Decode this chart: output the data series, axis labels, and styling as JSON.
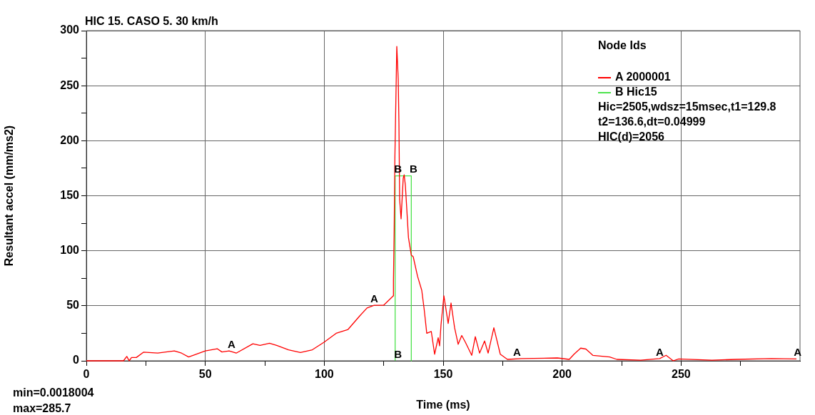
{
  "chart_data": {
    "type": "line",
    "title": "HIC 15. CASO 5. 30 km/h",
    "xlabel": "Time (ms)",
    "ylabel": "Resultant accel (mm/ms2)",
    "legend_title": "Node Ids",
    "xlim": [
      0,
      300
    ],
    "ylim": [
      0,
      300
    ],
    "xticks": [
      0,
      {
        "value": 25,
        "label": null
      },
      50,
      {
        "value": 75,
        "label": null
      },
      100,
      {
        "value": 125,
        "label": null
      },
      150,
      {
        "value": 175,
        "label": null
      },
      200,
      {
        "value": 225,
        "label": null
      },
      250,
      {
        "value": 275,
        "label": null
      }
    ],
    "yticks": [
      0,
      {
        "value": 25,
        "label": null
      },
      50,
      {
        "value": 75,
        "label": null
      },
      100,
      {
        "value": 125,
        "label": null
      },
      150,
      {
        "value": 175,
        "label": null
      },
      200,
      {
        "value": 225,
        "label": null
      },
      250,
      {
        "value": 275,
        "label": null
      },
      300
    ],
    "grid": true,
    "legend": "top right",
    "marker": "none",
    "line_style": "solid",
    "series": [
      {
        "name": "A 2000001",
        "color": "#ff0000",
        "x": [
          0,
          15.6,
          17,
          18,
          19,
          21,
          24,
          30,
          37,
          40,
          43,
          50,
          55,
          57,
          60,
          63,
          70,
          73,
          77,
          80,
          85,
          90,
          95,
          100,
          105,
          110,
          115,
          118,
          121,
          125,
          129,
          129.1,
          129.4,
          129.7,
          130.5,
          131.1,
          131.4,
          131.7,
          132.3,
          133.2,
          133.6,
          134.1,
          134.7,
          135.4,
          136.6,
          137.4,
          139.2,
          141,
          142,
          143.1,
          145,
          146.4,
          147.9,
          148.5,
          149.1,
          150.3,
          152.1,
          153.3,
          154.8,
          156.3,
          157.8,
          159.3,
          162,
          163.5,
          165.3,
          167.4,
          168.9,
          171.3,
          174,
          177,
          183,
          198,
          203,
          205,
          207.8,
          210,
          212.9,
          220,
          223,
          233,
          241,
          243.7,
          246.7,
          249,
          263,
          273,
          288,
          298.5
        ],
        "values": [
          0,
          0,
          4,
          0,
          3,
          3,
          7.8,
          7,
          9,
          7,
          3.5,
          9,
          11,
          8,
          9,
          7,
          15.5,
          14,
          16,
          14,
          10,
          7.6,
          10,
          17,
          25,
          28.5,
          41,
          48,
          50.5,
          50.5,
          59,
          73,
          118.6,
          185,
          285.7,
          256,
          216,
          146.5,
          129,
          166,
          169,
          159.5,
          138,
          112,
          96,
          94.6,
          77,
          64,
          47,
          25,
          26.6,
          6,
          21,
          13.6,
          33,
          59,
          34,
          52.5,
          30,
          15,
          23,
          17,
          5,
          22,
          7,
          18,
          7,
          30,
          6,
          1.3,
          2,
          2.6,
          1.3,
          6,
          11.5,
          10.7,
          5,
          3.5,
          1.3,
          0.6,
          2,
          5,
          0,
          1.7,
          0.6,
          1.3,
          2,
          1.7
        ]
      },
      {
        "name": "B Hic15",
        "color": "#4de34d",
        "x": [
          129.8,
          129.8,
          136.6,
          136.6
        ],
        "values": [
          0,
          168,
          168,
          0
        ]
      }
    ],
    "annotations": [
      {
        "text": "A",
        "x": 61,
        "y": 9
      },
      {
        "text": "A",
        "x": 121,
        "y": 50.5
      },
      {
        "text": "A",
        "x": 181,
        "y": 2
      },
      {
        "text": "A",
        "x": 241,
        "y": 2
      },
      {
        "text": "A",
        "x": 299,
        "y": 2
      },
      {
        "text": "B",
        "x": 131,
        "y": 168
      },
      {
        "text": "B",
        "x": 137.5,
        "y": 168
      },
      {
        "text": "B",
        "x": 131,
        "y": 0
      },
      "Hic=2505,wdsz=15msec,t1=129.8",
      "t2=136.6,dt=0.04999",
      "HIC(d)=2056",
      "min=0.0018004",
      "max=285.7"
    ]
  }
}
